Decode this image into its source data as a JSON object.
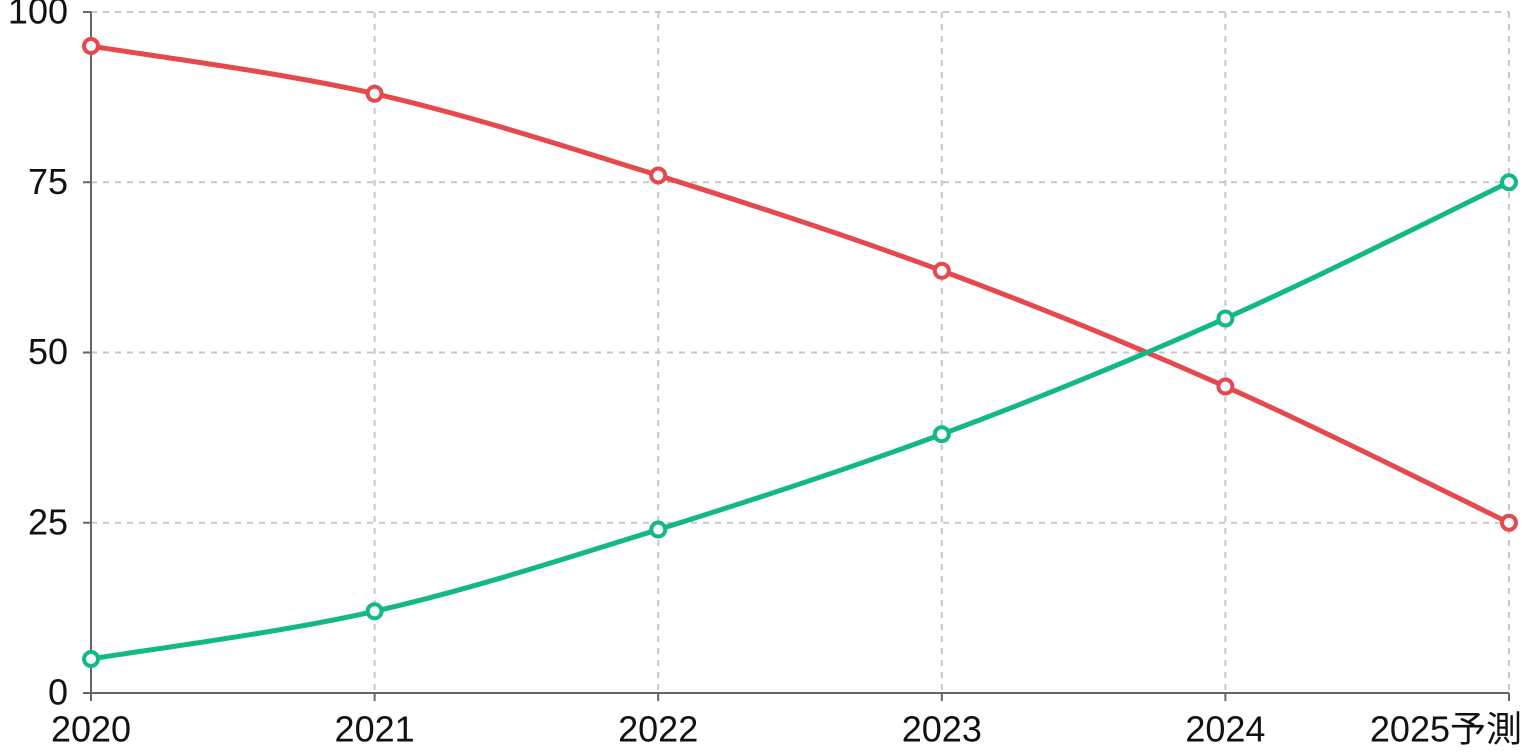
{
  "chart_data": {
    "type": "line",
    "categories": [
      "2020",
      "2021",
      "2022",
      "2023",
      "2024",
      "2025予測"
    ],
    "series": [
      {
        "color": "#e5484d",
        "values": [
          95,
          88,
          76,
          62,
          45,
          25
        ]
      },
      {
        "color": "#12b886",
        "values": [
          5,
          12,
          24,
          38,
          55,
          75
        ]
      }
    ],
    "ylim": [
      0,
      100
    ],
    "yticks": [
      0,
      25,
      50,
      75,
      100
    ],
    "grid": true
  }
}
